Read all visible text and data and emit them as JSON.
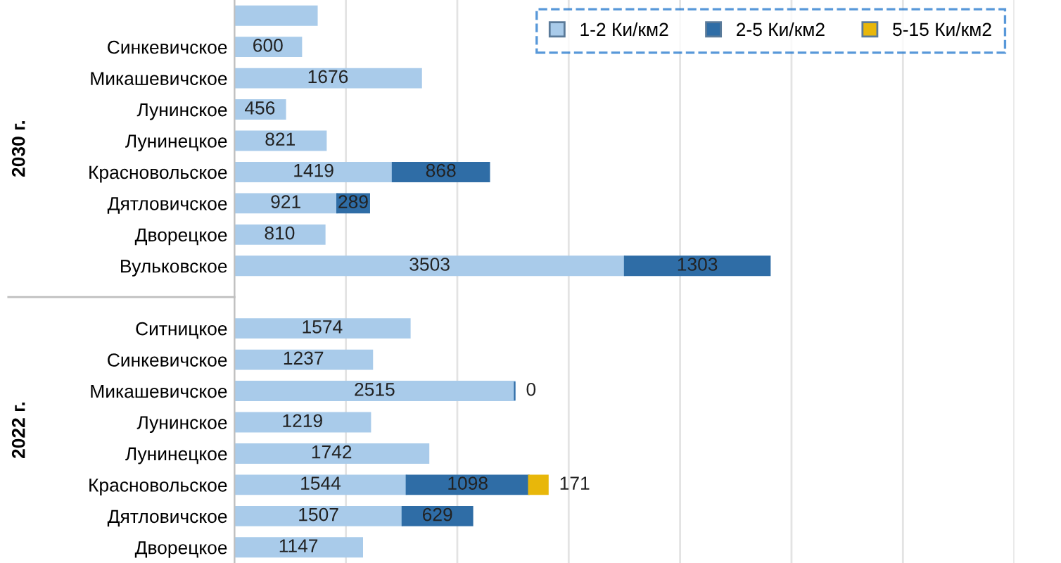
{
  "chart_data": {
    "type": "bar",
    "orientation": "horizontal",
    "stacked": true,
    "categories": [
      null,
      "Синкевичское",
      "Микашевичское",
      "Лунинское",
      "Лунинецкое",
      "Красновольское",
      "Дятловичское",
      "Дворецкое",
      "Вульковское",
      null,
      "Ситницкое",
      "Синкевичское",
      "Микашевичское",
      "Лунинское",
      "Лунинецкое",
      "Красновольское",
      "Дятловичское",
      "Дворецкое"
    ],
    "series": [
      {
        "name": "1-2 Ки/км2",
        "color": "#a9cbea",
        "values": [
          740,
          600,
          1676,
          456,
          821,
          1419,
          921,
          810,
          3503,
          null,
          1574,
          1237,
          2515,
          1219,
          1742,
          1544,
          1507,
          1147
        ],
        "value_labels": [
          null,
          "600",
          "1676",
          "456",
          "821",
          "1419",
          "921",
          "810",
          "3503",
          null,
          "1574",
          "1237",
          "2515",
          "1219",
          "1742",
          "1544",
          "1507",
          "1147"
        ]
      },
      {
        "name": "2-5 Ки/км2",
        "color": "#2f6da6",
        "values": [
          null,
          null,
          null,
          null,
          null,
          868,
          289,
          null,
          1303,
          null,
          null,
          null,
          0,
          null,
          null,
          1098,
          629,
          null
        ],
        "value_labels": [
          null,
          null,
          null,
          null,
          null,
          "868",
          "289",
          null,
          "1303",
          null,
          null,
          null,
          "0",
          null,
          null,
          "1098",
          "629",
          null
        ]
      },
      {
        "name": "5-15 Ки/км2",
        "color": "#e8b70a",
        "values": [
          null,
          null,
          null,
          null,
          null,
          null,
          null,
          null,
          null,
          null,
          null,
          null,
          null,
          null,
          null,
          171,
          null,
          null
        ],
        "value_labels": [
          null,
          null,
          null,
          null,
          null,
          null,
          null,
          null,
          null,
          null,
          null,
          null,
          null,
          null,
          null,
          "171",
          null,
          null
        ]
      }
    ],
    "xlim": [
      0,
      7000
    ],
    "xticks": [
      {
        "value": 0,
        "label": null
      },
      {
        "value": 1000,
        "label": null
      },
      {
        "value": 2000,
        "label": null
      },
      {
        "value": 3000,
        "label": null
      },
      {
        "value": 4000,
        "label": null
      },
      {
        "value": 5000,
        "label": null
      },
      {
        "value": 6000,
        "label": null
      },
      {
        "value": 7000,
        "label": null
      }
    ],
    "grid": "x",
    "legend": "top right",
    "annotations": [
      "2030 г.",
      "2022 г."
    ]
  }
}
